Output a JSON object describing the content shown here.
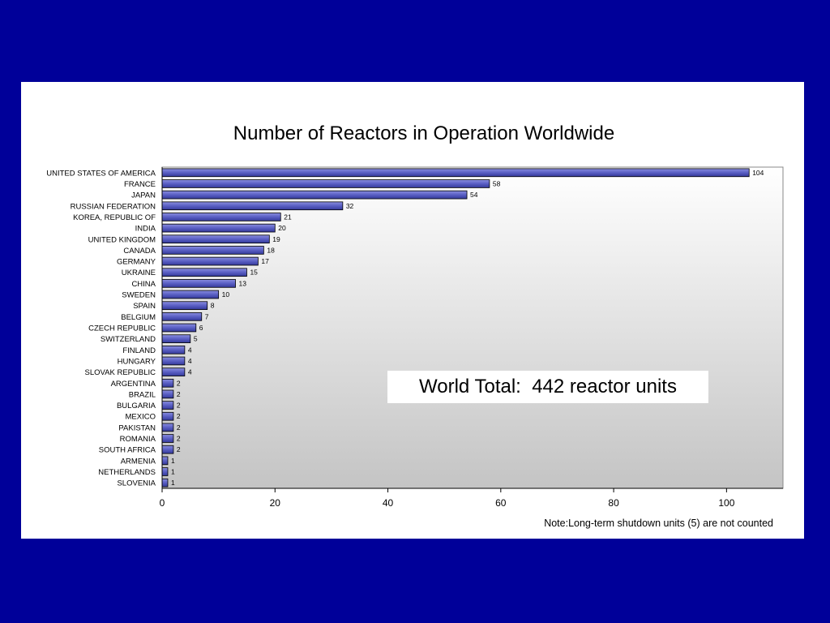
{
  "slide": {
    "note": "Note:Long-term shutdown units (5) are not counted",
    "total_box": "World Total:  442 reactor units"
  },
  "chart_data": {
    "type": "bar",
    "orientation": "horizontal",
    "title": "Number of Reactors in Operation Worldwide",
    "xlabel": "",
    "ylabel": "",
    "categories": [
      "UNITED STATES OF AMERICA",
      "FRANCE",
      "JAPAN",
      "RUSSIAN FEDERATION",
      "KOREA, REPUBLIC OF",
      "INDIA",
      "UNITED KINGDOM",
      "CANADA",
      "GERMANY",
      "UKRAINE",
      "CHINA",
      "SWEDEN",
      "SPAIN",
      "BELGIUM",
      "CZECH REPUBLIC",
      "SWITZERLAND",
      "FINLAND",
      "HUNGARY",
      "SLOVAK REPUBLIC",
      "ARGENTINA",
      "BRAZIL",
      "BULGARIA",
      "MEXICO",
      "PAKISTAN",
      "ROMANIA",
      "SOUTH AFRICA",
      "ARMENIA",
      "NETHERLANDS",
      "SLOVENIA"
    ],
    "values": [
      104,
      58,
      54,
      32,
      21,
      20,
      19,
      18,
      17,
      15,
      13,
      10,
      8,
      7,
      6,
      5,
      4,
      4,
      4,
      2,
      2,
      2,
      2,
      2,
      2,
      2,
      1,
      1,
      1
    ],
    "xlim": [
      0,
      110
    ],
    "xticks": [
      0,
      20,
      40,
      60,
      80,
      100
    ],
    "bar_color": "#4a4fb0",
    "grid": false,
    "legend": "none"
  }
}
